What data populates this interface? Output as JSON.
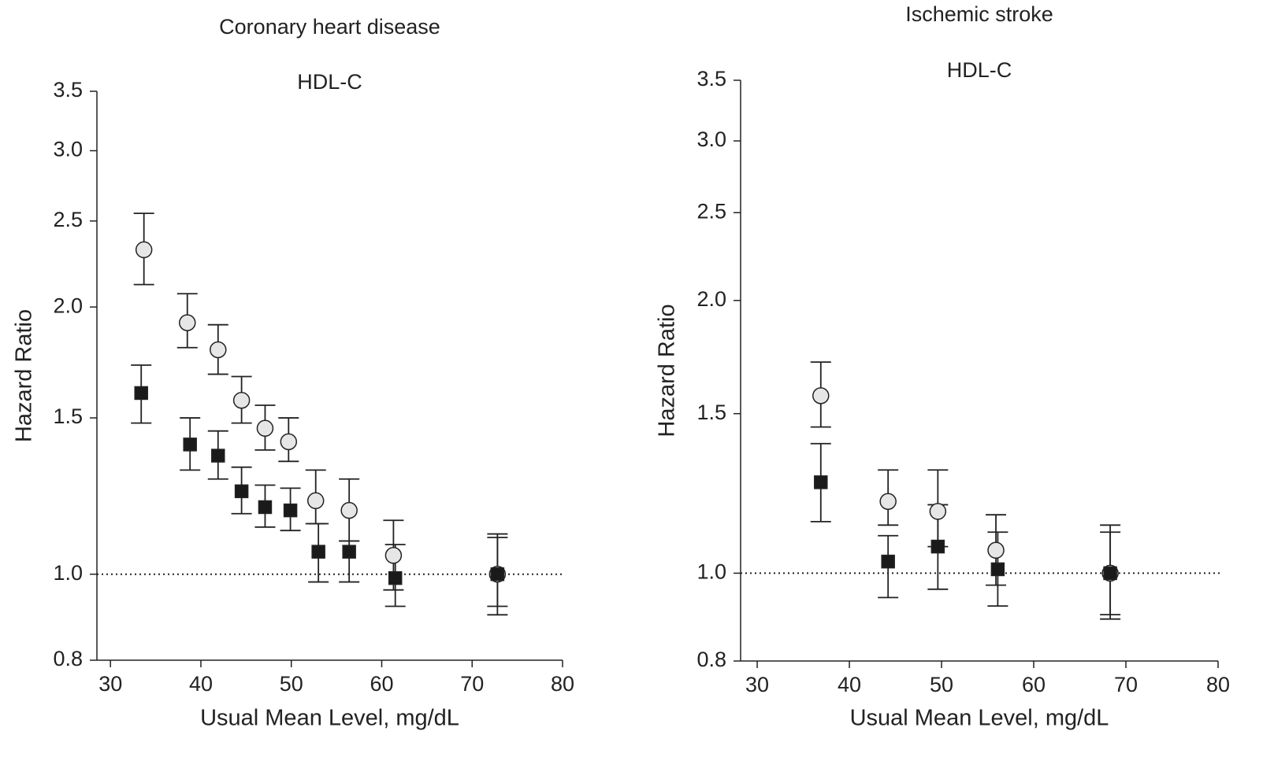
{
  "chart_data": [
    {
      "type": "scatter",
      "title": "Coronary heart disease",
      "subtitle": "HDL-C",
      "xlabel": "Usual Mean Level, mg/dL",
      "ylabel": "Hazard Ratio",
      "yscale": "log",
      "xlim": [
        28.5,
        80
      ],
      "ylim": [
        0.8,
        3.5
      ],
      "xticks": [
        30,
        40,
        50,
        60,
        70,
        80
      ],
      "yticks": [
        0.8,
        {
          "value": 1,
          "label": "1.0"
        },
        1.5,
        {
          "value": 2,
          "label": "2.0"
        },
        2.5,
        {
          "value": 3,
          "label": "3.0"
        },
        3.5
      ],
      "reference_line": 1,
      "series": [
        {
          "marker": "circle",
          "color": "#e6e6e6",
          "x": [
            33.7,
            38.5,
            41.9,
            44.5,
            47.1,
            49.7,
            52.7,
            56.4,
            61.3,
            72.8
          ],
          "values": [
            2.32,
            1.92,
            1.79,
            1.57,
            1.46,
            1.41,
            1.21,
            1.18,
            1.05,
            1.0
          ],
          "lower": [
            2.12,
            1.8,
            1.68,
            1.48,
            1.38,
            1.34,
            1.14,
            1.09,
            0.96,
            0.9
          ],
          "upper": [
            2.55,
            2.07,
            1.91,
            1.67,
            1.55,
            1.5,
            1.31,
            1.28,
            1.15,
            1.11
          ]
        },
        {
          "marker": "square",
          "color": "#1a1a1a",
          "x": [
            33.4,
            38.8,
            41.9,
            44.5,
            47.1,
            49.9,
            53.0,
            56.4,
            61.5,
            72.8
          ],
          "values": [
            1.6,
            1.4,
            1.36,
            1.24,
            1.19,
            1.18,
            1.06,
            1.06,
            0.99,
            1.0
          ],
          "lower": [
            1.48,
            1.31,
            1.28,
            1.17,
            1.13,
            1.12,
            0.98,
            0.98,
            0.92,
            0.92
          ],
          "upper": [
            1.72,
            1.5,
            1.45,
            1.32,
            1.26,
            1.25,
            1.14,
            1.09,
            1.08,
            1.1
          ]
        }
      ]
    },
    {
      "type": "scatter",
      "title": "Ischemic stroke",
      "subtitle": "HDL-C",
      "xlabel": "Usual Mean Level, mg/dL",
      "ylabel": "Hazard Ratio",
      "yscale": "log",
      "xlim": [
        28.2,
        80
      ],
      "ylim": [
        0.8,
        3.5
      ],
      "xticks": [
        30,
        40,
        50,
        60,
        70,
        80
      ],
      "yticks": [
        0.8,
        {
          "value": 1,
          "label": "1.0"
        },
        1.5,
        {
          "value": 2,
          "label": "2.0"
        },
        2.5,
        {
          "value": 3,
          "label": "3.0"
        },
        3.5
      ],
      "reference_line": 1,
      "series": [
        {
          "marker": "circle",
          "color": "#e6e6e6",
          "x": [
            36.9,
            44.2,
            49.6,
            55.9,
            68.3
          ],
          "values": [
            1.57,
            1.2,
            1.17,
            1.06,
            1.0
          ],
          "lower": [
            1.45,
            1.13,
            1.07,
            0.97,
            0.89
          ],
          "upper": [
            1.71,
            1.3,
            1.3,
            1.16,
            1.13
          ]
        },
        {
          "marker": "square",
          "color": "#1a1a1a",
          "x": [
            36.9,
            44.2,
            49.6,
            56.1,
            68.3
          ],
          "values": [
            1.26,
            1.03,
            1.07,
            1.01,
            1.0
          ],
          "lower": [
            1.14,
            0.94,
            0.96,
            0.92,
            0.9
          ],
          "upper": [
            1.39,
            1.1,
            1.19,
            1.11,
            1.11
          ]
        }
      ]
    }
  ]
}
